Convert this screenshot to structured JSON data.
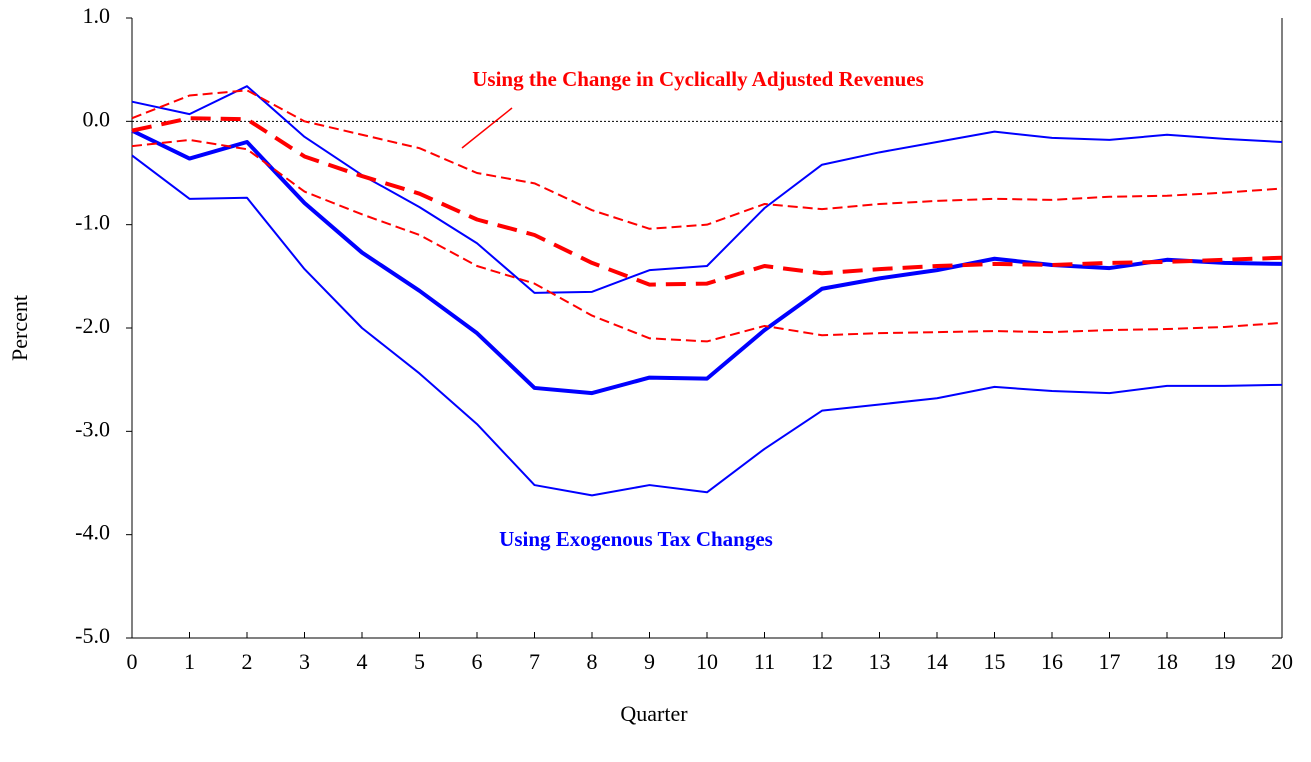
{
  "chart_data": {
    "type": "line",
    "x_label": "Quarter",
    "y_label": "Percent",
    "x": [
      0,
      1,
      2,
      3,
      4,
      5,
      6,
      7,
      8,
      9,
      10,
      11,
      12,
      13,
      14,
      15,
      16,
      17,
      18,
      19,
      20
    ],
    "xlim": [
      0,
      20
    ],
    "xticks": [
      0,
      1,
      2,
      3,
      4,
      5,
      6,
      7,
      8,
      9,
      10,
      11,
      12,
      13,
      14,
      15,
      16,
      17,
      18,
      19,
      20
    ],
    "ylim": [
      -5,
      1
    ],
    "yticks": [
      {
        "value": 1,
        "label": "1.0"
      },
      {
        "value": 0,
        "label": "0.0"
      },
      {
        "value": -1,
        "label": "-1.0"
      },
      {
        "value": -2,
        "label": "-2.0"
      },
      {
        "value": -3,
        "label": "-3.0"
      },
      {
        "value": -4,
        "label": "-4.0"
      },
      {
        "value": -5,
        "label": "-5.0"
      }
    ],
    "zero_line": true,
    "annotations": [
      {
        "text": "Using the Change in Cyclically Adjusted Revenues",
        "color": "#ff0000"
      },
      {
        "text": "Using Exogenous Tax Changes",
        "color": "#0000ff"
      }
    ],
    "series": [
      {
        "color": "#0000ff",
        "width": 2,
        "dash": "solid",
        "values": [
          0.19,
          0.07,
          0.34,
          -0.15,
          -0.52,
          -0.83,
          -1.18,
          -1.66,
          -1.65,
          -1.44,
          -1.4,
          -0.84,
          -0.42,
          -0.3,
          -0.2,
          -0.1,
          -0.16,
          -0.18,
          -0.13,
          -0.17,
          -0.2
        ]
      },
      {
        "color": "#0000ff",
        "width": 2,
        "dash": "solid",
        "values": [
          -0.33,
          -0.75,
          -0.74,
          -1.43,
          -2.0,
          -2.44,
          -2.93,
          -3.52,
          -3.62,
          -3.52,
          -3.59,
          -3.17,
          -2.8,
          -2.74,
          -2.68,
          -2.57,
          -2.61,
          -2.63,
          -2.56,
          -2.56,
          -2.55
        ]
      },
      {
        "color": "#0000ff",
        "width": 4,
        "dash": "solid",
        "values": [
          -0.09,
          -0.36,
          -0.2,
          -0.79,
          -1.27,
          -1.64,
          -2.05,
          -2.58,
          -2.63,
          -2.48,
          -2.49,
          -2.02,
          -1.62,
          -1.52,
          -1.44,
          -1.33,
          -1.39,
          -1.42,
          -1.34,
          -1.37,
          -1.38
        ]
      },
      {
        "color": "#ff0000",
        "width": 2,
        "dash": "dashed",
        "values": [
          0.03,
          0.25,
          0.3,
          0.0,
          -0.13,
          -0.26,
          -0.5,
          -0.6,
          -0.86,
          -1.04,
          -1.0,
          -0.8,
          -0.85,
          -0.8,
          -0.77,
          -0.75,
          -0.76,
          -0.73,
          -0.72,
          -0.69,
          -0.65
        ]
      },
      {
        "color": "#ff0000",
        "width": 2,
        "dash": "dashed",
        "values": [
          -0.24,
          -0.18,
          -0.27,
          -0.68,
          -0.9,
          -1.1,
          -1.4,
          -1.57,
          -1.88,
          -2.1,
          -2.13,
          -1.98,
          -2.07,
          -2.05,
          -2.04,
          -2.03,
          -2.04,
          -2.02,
          -2.01,
          -1.99,
          -1.95
        ]
      },
      {
        "color": "#ff0000",
        "width": 4,
        "dash": "dashed",
        "values": [
          -0.09,
          0.03,
          0.02,
          -0.34,
          -0.53,
          -0.7,
          -0.95,
          -1.1,
          -1.37,
          -1.58,
          -1.57,
          -1.4,
          -1.47,
          -1.43,
          -1.4,
          -1.38,
          -1.39,
          -1.37,
          -1.36,
          -1.34,
          -1.32
        ]
      }
    ]
  }
}
